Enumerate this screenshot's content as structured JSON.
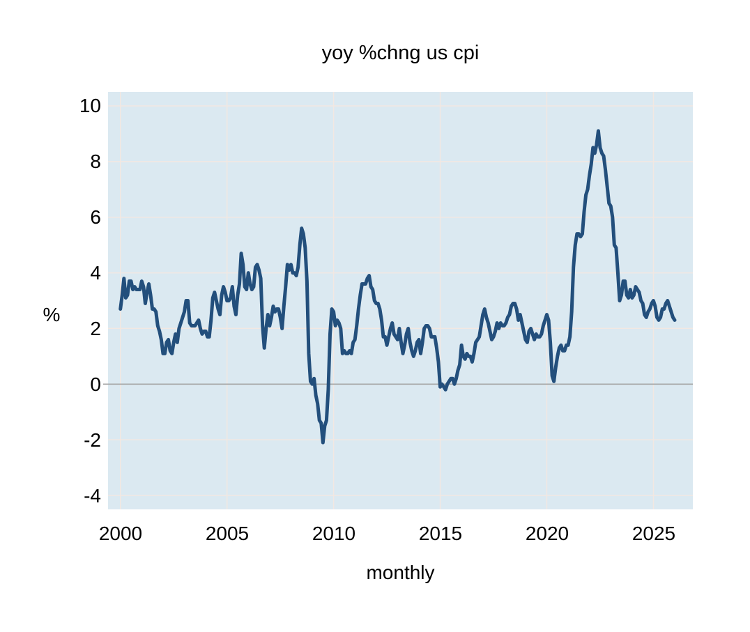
{
  "chart_data": {
    "type": "line",
    "title": "yoy %chng us cpi",
    "xlabel": "monthly",
    "ylabel": "%",
    "x_ticks": [
      "2000",
      "2005",
      "2010",
      "2015",
      "2020",
      "2025"
    ],
    "x_tick_years": [
      2000,
      2005,
      2010,
      2015,
      2020,
      2025
    ],
    "y_ticks": [
      "10",
      "8",
      "6",
      "4",
      "2",
      "0",
      "-2",
      "-4"
    ],
    "y_tick_values": [
      10,
      8,
      6,
      4,
      2,
      0,
      -2,
      -4
    ],
    "xlim": [
      1999.42,
      2026.85
    ],
    "ylim": [
      -4.5,
      10.5
    ],
    "grid": true,
    "legend": false,
    "zero_line": true,
    "colors": {
      "line": "#234f7c",
      "plot_background": "#dbe9f1",
      "zero_line": "#a6a6a6",
      "gridline": "#f2e8e2",
      "text": "#000000"
    },
    "series": [
      {
        "name": "yoy % change us cpi",
        "x_start_year": 2000,
        "points_per_year": 12,
        "values": [
          2.7,
          3.2,
          3.8,
          3.1,
          3.2,
          3.7,
          3.7,
          3.4,
          3.5,
          3.4,
          3.4,
          3.4,
          3.7,
          3.5,
          2.9,
          3.3,
          3.6,
          3.2,
          2.7,
          2.7,
          2.6,
          2.1,
          1.9,
          1.6,
          1.1,
          1.1,
          1.5,
          1.6,
          1.2,
          1.1,
          1.5,
          1.8,
          1.5,
          2.0,
          2.2,
          2.4,
          2.6,
          3.0,
          3.0,
          2.2,
          2.1,
          2.1,
          2.1,
          2.2,
          2.3,
          2.0,
          1.8,
          1.9,
          1.9,
          1.7,
          1.7,
          2.3,
          3.1,
          3.3,
          3.0,
          2.7,
          2.5,
          3.2,
          3.5,
          3.3,
          3.0,
          3.0,
          3.1,
          3.5,
          2.8,
          2.5,
          3.2,
          3.6,
          4.7,
          4.3,
          3.5,
          3.4,
          4.0,
          3.6,
          3.4,
          3.5,
          4.2,
          4.3,
          4.1,
          3.8,
          2.1,
          1.3,
          2.0,
          2.5,
          2.1,
          2.4,
          2.8,
          2.6,
          2.7,
          2.7,
          2.4,
          2.0,
          2.8,
          3.5,
          4.3,
          4.1,
          4.3,
          4.0,
          4.0,
          3.9,
          4.2,
          5.0,
          5.6,
          5.4,
          4.9,
          3.7,
          1.1,
          0.1,
          0.0,
          0.2,
          -0.4,
          -0.7,
          -1.3,
          -1.4,
          -2.1,
          -1.5,
          -1.3,
          -0.2,
          1.8,
          2.7,
          2.6,
          2.1,
          2.3,
          2.2,
          2.0,
          1.1,
          1.2,
          1.1,
          1.1,
          1.2,
          1.1,
          1.5,
          1.6,
          2.1,
          2.7,
          3.2,
          3.6,
          3.6,
          3.6,
          3.8,
          3.9,
          3.5,
          3.4,
          3.0,
          2.9,
          2.9,
          2.7,
          2.3,
          1.7,
          1.7,
          1.4,
          1.7,
          2.0,
          2.2,
          1.8,
          1.7,
          1.6,
          2.0,
          1.5,
          1.1,
          1.4,
          1.8,
          2.0,
          1.5,
          1.2,
          1.0,
          1.2,
          1.5,
          1.6,
          1.1,
          1.5,
          2.0,
          2.1,
          2.1,
          2.0,
          1.7,
          1.7,
          1.7,
          1.3,
          0.8,
          -0.1,
          0.0,
          -0.1,
          -0.2,
          0.0,
          0.1,
          0.2,
          0.2,
          0.0,
          0.2,
          0.5,
          0.7,
          1.4,
          1.0,
          0.9,
          1.1,
          1.0,
          1.0,
          0.8,
          1.1,
          1.5,
          1.6,
          1.7,
          2.1,
          2.5,
          2.7,
          2.4,
          2.2,
          1.9,
          1.6,
          1.7,
          1.9,
          2.2,
          2.0,
          2.2,
          2.1,
          2.1,
          2.2,
          2.4,
          2.5,
          2.8,
          2.9,
          2.9,
          2.7,
          2.3,
          2.5,
          2.2,
          1.9,
          1.6,
          1.5,
          1.9,
          2.0,
          1.8,
          1.6,
          1.8,
          1.7,
          1.7,
          1.8,
          2.1,
          2.3,
          2.5,
          2.3,
          1.5,
          0.3,
          0.1,
          0.6,
          1.0,
          1.3,
          1.4,
          1.2,
          1.2,
          1.4,
          1.4,
          1.7,
          2.6,
          4.2,
          5.0,
          5.4,
          5.4,
          5.3,
          5.4,
          6.2,
          6.8,
          7.0,
          7.5,
          7.9,
          8.5,
          8.3,
          8.6,
          9.1,
          8.5,
          8.3,
          8.2,
          7.7,
          7.1,
          6.5,
          6.4,
          6.0,
          5.0,
          4.9,
          4.0,
          3.0,
          3.2,
          3.7,
          3.7,
          3.2,
          3.1,
          3.4,
          3.1,
          3.2,
          3.5,
          3.4,
          3.3,
          3.0,
          2.9,
          2.5,
          2.4,
          2.6,
          2.7,
          2.9,
          3.0,
          2.8,
          2.4,
          2.3,
          2.4,
          2.7,
          2.7,
          2.9,
          3.0,
          2.8,
          2.6,
          2.4,
          2.3
        ]
      }
    ]
  }
}
